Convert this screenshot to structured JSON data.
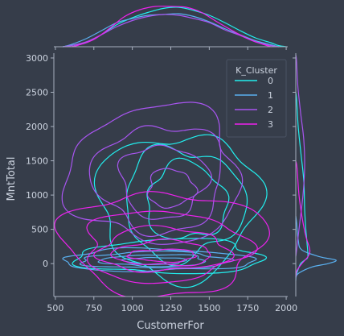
{
  "chart_data": {
    "type": "kde-jointplot",
    "xlabel": "CustomerFor",
    "ylabel": "MntTotal",
    "xlim": [
      490,
      2010
    ],
    "ylim": [
      -480,
      3070
    ],
    "xticks": [
      500,
      750,
      1000,
      1250,
      1500,
      1750,
      2000
    ],
    "yticks": [
      0,
      500,
      1000,
      1500,
      2000,
      2500,
      3000
    ],
    "legend": {
      "title": "K_Cluster",
      "placement": "top-right",
      "entries": [
        "0",
        "1",
        "2",
        "3"
      ]
    },
    "series": [
      {
        "name": "0",
        "color": "#22eeee",
        "contours": [
          {
            "cx": 1300,
            "cy": 850,
            "rx": 520,
            "ry": 1050
          },
          {
            "cx": 1330,
            "cy": 880,
            "rx": 390,
            "ry": 800
          },
          {
            "cx": 1350,
            "cy": 900,
            "rx": 260,
            "ry": 560
          },
          {
            "cx": 1250,
            "cy": 100,
            "rx": 600,
            "ry": 250
          }
        ],
        "marginal_x": [
          [
            600,
            0.03
          ],
          [
            700,
            0.1
          ],
          [
            800,
            0.3
          ],
          [
            900,
            0.55
          ],
          [
            1000,
            0.72
          ],
          [
            1100,
            0.85
          ],
          [
            1200,
            0.95
          ],
          [
            1300,
            0.98
          ],
          [
            1400,
            0.9
          ],
          [
            1500,
            0.78
          ],
          [
            1600,
            0.6
          ],
          [
            1700,
            0.4
          ],
          [
            1800,
            0.22
          ],
          [
            1900,
            0.1
          ],
          [
            1950,
            0.03
          ]
        ],
        "marginal_y": [
          [
            -100,
            0.05
          ],
          [
            0,
            0.12
          ],
          [
            50,
            0.22
          ],
          [
            100,
            0.3
          ],
          [
            300,
            0.28
          ],
          [
            500,
            0.25
          ],
          [
            800,
            0.22
          ],
          [
            1200,
            0.2
          ],
          [
            1600,
            0.13
          ],
          [
            2000,
            0.06
          ],
          [
            2400,
            0.02
          ]
        ]
      },
      {
        "name": "1",
        "color": "#5ab0f0",
        "contours": [
          {
            "cx": 1150,
            "cy": 50,
            "rx": 620,
            "ry": 160
          },
          {
            "cx": 1150,
            "cy": 50,
            "rx": 480,
            "ry": 120
          },
          {
            "cx": 1150,
            "cy": 45,
            "rx": 340,
            "ry": 85
          },
          {
            "cx": 1150,
            "cy": 40,
            "rx": 200,
            "ry": 50
          }
        ],
        "marginal_x": [
          [
            600,
            0.05
          ],
          [
            700,
            0.2
          ],
          [
            800,
            0.4
          ],
          [
            900,
            0.6
          ],
          [
            1000,
            0.7
          ],
          [
            1100,
            0.78
          ],
          [
            1200,
            0.8
          ],
          [
            1300,
            0.82
          ],
          [
            1400,
            0.75
          ],
          [
            1500,
            0.62
          ],
          [
            1600,
            0.45
          ],
          [
            1700,
            0.3
          ],
          [
            1800,
            0.15
          ],
          [
            1900,
            0.05
          ]
        ],
        "marginal_y": [
          [
            -150,
            0.05
          ],
          [
            -50,
            0.4
          ],
          [
            0,
            0.8
          ],
          [
            50,
            1.0
          ],
          [
            100,
            0.6
          ],
          [
            200,
            0.15
          ],
          [
            350,
            0.06
          ],
          [
            600,
            0.02
          ]
        ]
      },
      {
        "name": "2",
        "color": "#a855f0",
        "contours": [
          {
            "cx": 1150,
            "cy": 1300,
            "rx": 560,
            "ry": 1000
          },
          {
            "cx": 1180,
            "cy": 1250,
            "rx": 420,
            "ry": 780
          },
          {
            "cx": 1200,
            "cy": 1200,
            "rx": 280,
            "ry": 530
          },
          {
            "cx": 1250,
            "cy": 1100,
            "rx": 150,
            "ry": 280
          }
        ],
        "marginal_x": [
          [
            600,
            0.03
          ],
          [
            700,
            0.12
          ],
          [
            800,
            0.3
          ],
          [
            900,
            0.5
          ],
          [
            1000,
            0.65
          ],
          [
            1100,
            0.75
          ],
          [
            1200,
            0.8
          ],
          [
            1300,
            0.78
          ],
          [
            1400,
            0.7
          ],
          [
            1500,
            0.6
          ],
          [
            1600,
            0.42
          ],
          [
            1700,
            0.28
          ],
          [
            1800,
            0.12
          ],
          [
            1900,
            0.03
          ]
        ],
        "marginal_y": [
          [
            200,
            0.02
          ],
          [
            600,
            0.1
          ],
          [
            1000,
            0.18
          ],
          [
            1400,
            0.22
          ],
          [
            1800,
            0.2
          ],
          [
            2200,
            0.12
          ],
          [
            2600,
            0.05
          ],
          [
            2950,
            0.02
          ]
        ]
      },
      {
        "name": "3",
        "color": "#ee22ee",
        "contours": [
          {
            "cx": 1200,
            "cy": 300,
            "rx": 650,
            "ry": 750
          },
          {
            "cx": 1200,
            "cy": 250,
            "rx": 520,
            "ry": 520
          },
          {
            "cx": 1200,
            "cy": 200,
            "rx": 420,
            "ry": 320
          },
          {
            "cx": 1200,
            "cy": 150,
            "rx": 320,
            "ry": 180
          },
          {
            "cx": 1200,
            "cy": 120,
            "rx": 220,
            "ry": 90
          }
        ],
        "marginal_x": [
          [
            650,
            0.04
          ],
          [
            750,
            0.18
          ],
          [
            850,
            0.45
          ],
          [
            950,
            0.75
          ],
          [
            1050,
            0.92
          ],
          [
            1150,
            1.0
          ],
          [
            1250,
            1.0
          ],
          [
            1350,
            0.98
          ],
          [
            1450,
            0.85
          ],
          [
            1550,
            0.62
          ],
          [
            1650,
            0.4
          ],
          [
            1750,
            0.2
          ],
          [
            1850,
            0.06
          ]
        ],
        "marginal_y": [
          [
            -100,
            0.03
          ],
          [
            0,
            0.15
          ],
          [
            100,
            0.3
          ],
          [
            200,
            0.35
          ],
          [
            400,
            0.25
          ],
          [
            700,
            0.15
          ],
          [
            1000,
            0.08
          ],
          [
            1400,
            0.03
          ]
        ]
      }
    ]
  },
  "colors": {
    "background": "#363d4a",
    "axis": "#a7b0bf",
    "text": "#ccd3df"
  }
}
